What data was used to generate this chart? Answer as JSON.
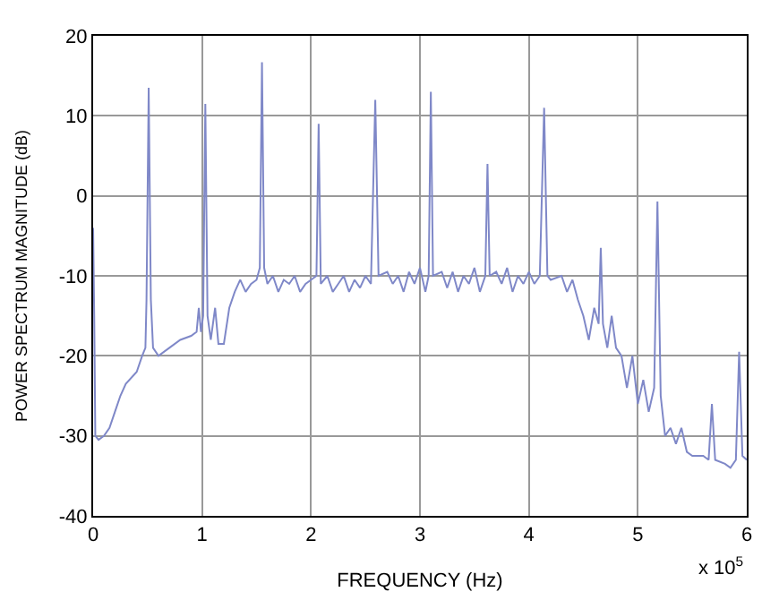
{
  "chart_data": {
    "type": "line",
    "xlabel": "FREQUENCY (Hz)",
    "ylabel": "POWER SPECTRUM MAGNITUDE (dB)",
    "annotations": [
      "x 10$^{5}$"
    ],
    "xlim": [
      0,
      6
    ],
    "xticks": [
      0,
      1,
      2,
      3,
      4,
      5,
      6
    ],
    "ylim": [
      -40,
      20
    ],
    "yticks": [
      -40,
      -30,
      -20,
      -10,
      0,
      10,
      20
    ],
    "grid": true,
    "legend": false,
    "marker": "none",
    "line_style": "solid",
    "series": [
      {
        "color": "#7f88c8",
        "x": [
          0,
          0.01,
          0.02,
          0.05,
          0.1,
          0.15,
          0.2,
          0.25,
          0.3,
          0.4,
          0.45,
          0.48,
          0.49,
          0.51,
          0.53,
          0.55,
          0.6,
          0.7,
          0.8,
          0.9,
          0.95,
          0.97,
          0.99,
          1.01,
          1.03,
          1.05,
          1.08,
          1.12,
          1.15,
          1.2,
          1.25,
          1.3,
          1.35,
          1.4,
          1.45,
          1.5,
          1.53,
          1.55,
          1.57,
          1.6,
          1.65,
          1.7,
          1.75,
          1.8,
          1.85,
          1.9,
          1.95,
          2.0,
          2.05,
          2.07,
          2.09,
          2.15,
          2.2,
          2.25,
          2.3,
          2.35,
          2.4,
          2.45,
          2.5,
          2.55,
          2.59,
          2.62,
          2.7,
          2.75,
          2.8,
          2.85,
          2.9,
          2.95,
          3.0,
          3.05,
          3.08,
          3.1,
          3.12,
          3.2,
          3.25,
          3.3,
          3.35,
          3.4,
          3.45,
          3.5,
          3.55,
          3.6,
          3.62,
          3.64,
          3.7,
          3.75,
          3.8,
          3.85,
          3.9,
          3.95,
          4.0,
          4.05,
          4.1,
          4.14,
          4.17,
          4.2,
          4.3,
          4.35,
          4.4,
          4.45,
          4.5,
          4.55,
          4.6,
          4.64,
          4.66,
          4.68,
          4.72,
          4.76,
          4.8,
          4.85,
          4.9,
          4.95,
          5.0,
          5.05,
          5.1,
          5.15,
          5.18,
          5.21,
          5.25,
          5.3,
          5.35,
          5.4,
          5.45,
          5.5,
          5.6,
          5.65,
          5.68,
          5.71,
          5.8,
          5.85,
          5.9,
          5.93,
          5.96,
          6.0
        ],
        "values": [
          -4,
          -15,
          -30,
          -30.5,
          -30,
          -29,
          -27,
          -25,
          -23.5,
          -22,
          -20,
          -19,
          -13,
          13.5,
          -13,
          -19,
          -20,
          -19,
          -18,
          -17.5,
          -17,
          -14,
          -17,
          -15,
          11.5,
          -15,
          -18,
          -14,
          -18.5,
          -18.5,
          -14,
          -12,
          -10.5,
          -12,
          -11,
          -10.5,
          -9,
          16.7,
          -9,
          -11,
          -10,
          -12,
          -10.5,
          -11,
          -10,
          -12,
          -11,
          -10.5,
          -10,
          9,
          -11,
          -10,
          -12,
          -11,
          -10,
          -12,
          -10.5,
          -11.5,
          -10,
          -11,
          12,
          -10,
          -9.5,
          -11,
          -10,
          -12,
          -9.5,
          -11,
          -9,
          -12,
          -10,
          13,
          -10,
          -9.5,
          -11.5,
          -9.5,
          -12,
          -10,
          -11,
          -9,
          -12,
          -10,
          4,
          -10,
          -9.5,
          -11,
          -9,
          -12,
          -10,
          -11,
          -9.5,
          -11,
          -10,
          11,
          -10,
          -10.5,
          -10,
          -12,
          -10.5,
          -13,
          -15,
          -18,
          -14,
          -16,
          -6.5,
          -16,
          -19,
          -15,
          -19,
          -20,
          -24,
          -20,
          -26,
          -23,
          -27,
          -24,
          -0.7,
          -25,
          -30,
          -29,
          -31,
          -29,
          -32,
          -32.5,
          -32.5,
          -33,
          -26,
          -33,
          -33.5,
          -34,
          -33,
          -19.5,
          -32.5,
          -33
        ]
      }
    ]
  }
}
